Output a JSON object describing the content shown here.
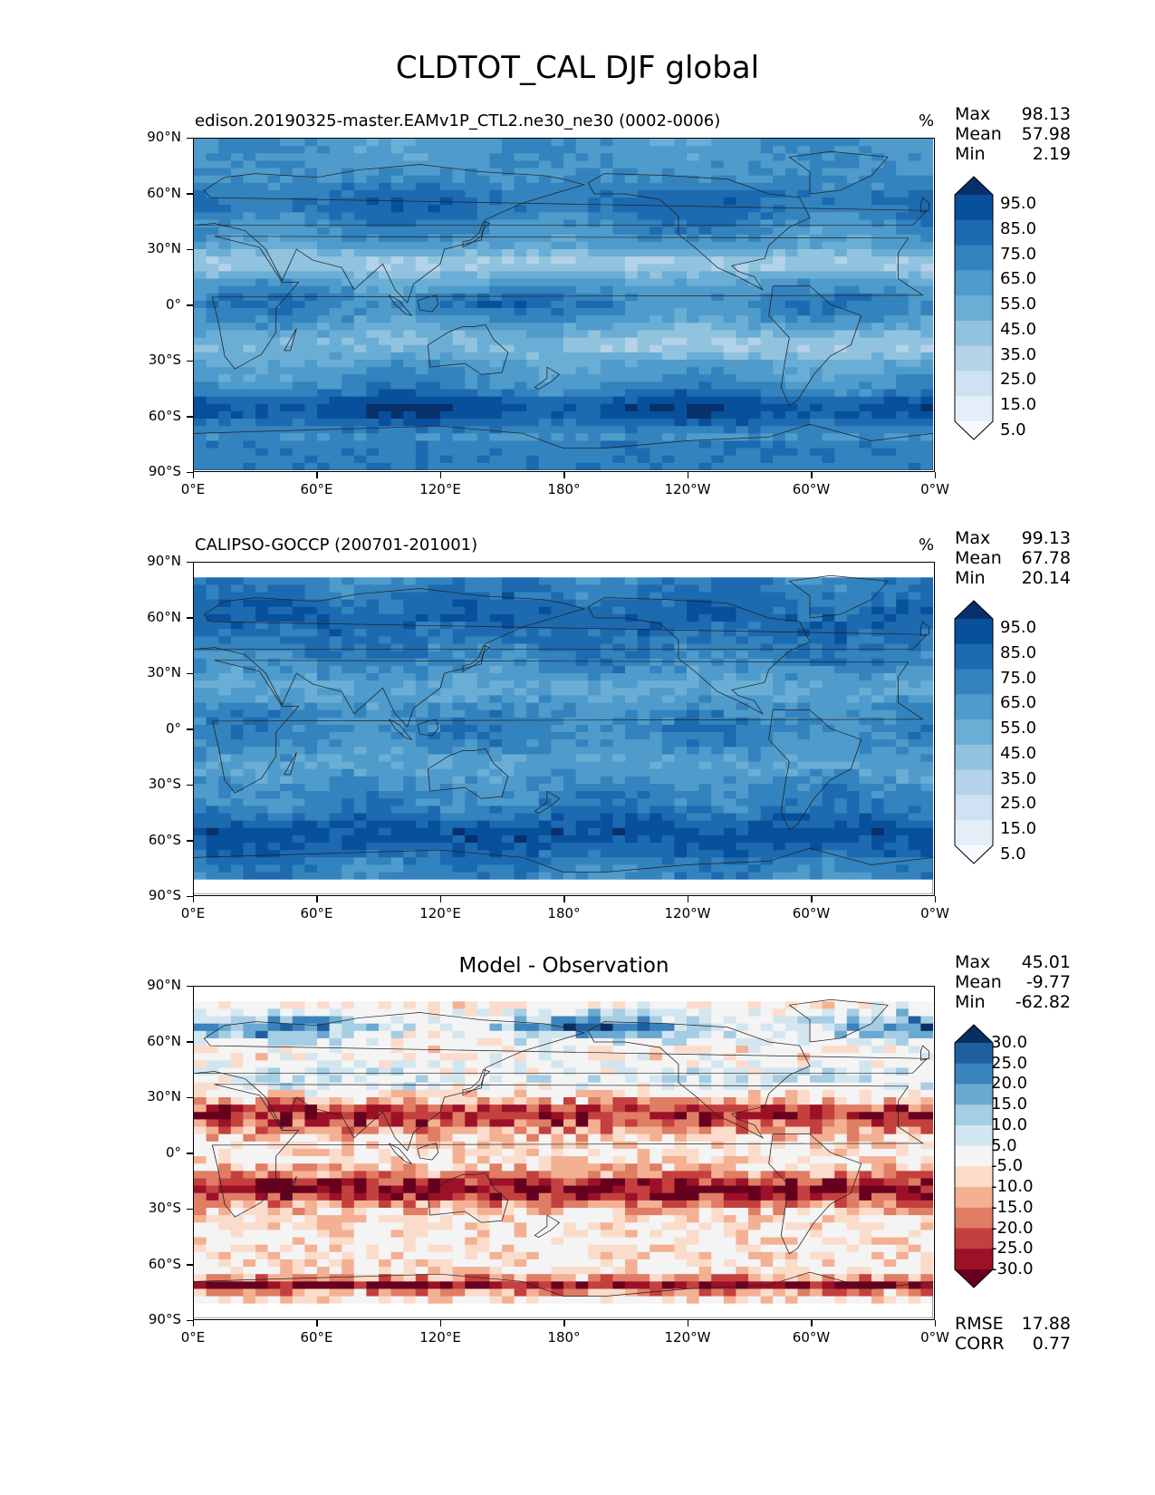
{
  "figure": {
    "title": "CLDTOT_CAL DJF global"
  },
  "axes": {
    "lat_ticks": [
      "90°N",
      "60°N",
      "30°N",
      "0°",
      "30°S",
      "60°S",
      "90°S"
    ],
    "lon_ticks": [
      "0°E",
      "60°E",
      "120°E",
      "180°",
      "120°W",
      "60°W",
      "0°W"
    ]
  },
  "panels": [
    {
      "id": "model",
      "title": "edison.20190325-master.EAMv1P_CTL2.ne30_ne30 (0002-0006)",
      "units": "%",
      "stats": [
        {
          "label": "Max",
          "value": "98.13"
        },
        {
          "label": "Mean",
          "value": "57.98"
        },
        {
          "label": "Min",
          "value": "2.19"
        }
      ],
      "colorbar": {
        "labels": [
          "95.0",
          "85.0",
          "75.0",
          "65.0",
          "55.0",
          "45.0",
          "35.0",
          "25.0",
          "15.0",
          "5.0"
        ],
        "colors": [
          "#08306b",
          "#08509b",
          "#1c6ab0",
          "#3383be",
          "#4f9bcb",
          "#6aaed6",
          "#91c3de",
          "#b4d3e9",
          "#cfe1f2",
          "#e3eef8",
          "#f7fbff"
        ]
      }
    },
    {
      "id": "obs",
      "title": "CALIPSO-GOCCP (200701-201001)",
      "units": "%",
      "stats": [
        {
          "label": "Max",
          "value": "99.13"
        },
        {
          "label": "Mean",
          "value": "67.78"
        },
        {
          "label": "Min",
          "value": "20.14"
        }
      ],
      "colorbar": {
        "labels": [
          "95.0",
          "85.0",
          "75.0",
          "65.0",
          "55.0",
          "45.0",
          "35.0",
          "25.0",
          "15.0",
          "5.0"
        ],
        "colors": [
          "#08306b",
          "#08509b",
          "#1c6ab0",
          "#3383be",
          "#4f9bcb",
          "#6aaed6",
          "#91c3de",
          "#b4d3e9",
          "#cfe1f2",
          "#e3eef8",
          "#f7fbff"
        ]
      }
    },
    {
      "id": "diff",
      "title": "Model - Observation",
      "stats": [
        {
          "label": "Max",
          "value": "45.01"
        },
        {
          "label": "Mean",
          "value": "-9.77"
        },
        {
          "label": "Min",
          "value": "-62.82"
        }
      ],
      "metrics": [
        {
          "label": "RMSE",
          "value": "17.88"
        },
        {
          "label": "CORR",
          "value": "0.77"
        }
      ],
      "colorbar": {
        "labels": [
          "30.0",
          "25.0",
          "20.0",
          "15.0",
          "10.0",
          "5.0",
          "-5.0",
          "-10.0",
          "-15.0",
          "-20.0",
          "-25.0",
          "-30.0"
        ],
        "colors": [
          "#053061",
          "#1f5fa0",
          "#3b83bd",
          "#6aa9d1",
          "#a5cde3",
          "#d3e6f0",
          "#f4f4f4",
          "#fbdccb",
          "#f4b093",
          "#e07d65",
          "#c4403e",
          "#9c1127",
          "#67001f"
        ]
      }
    }
  ]
}
